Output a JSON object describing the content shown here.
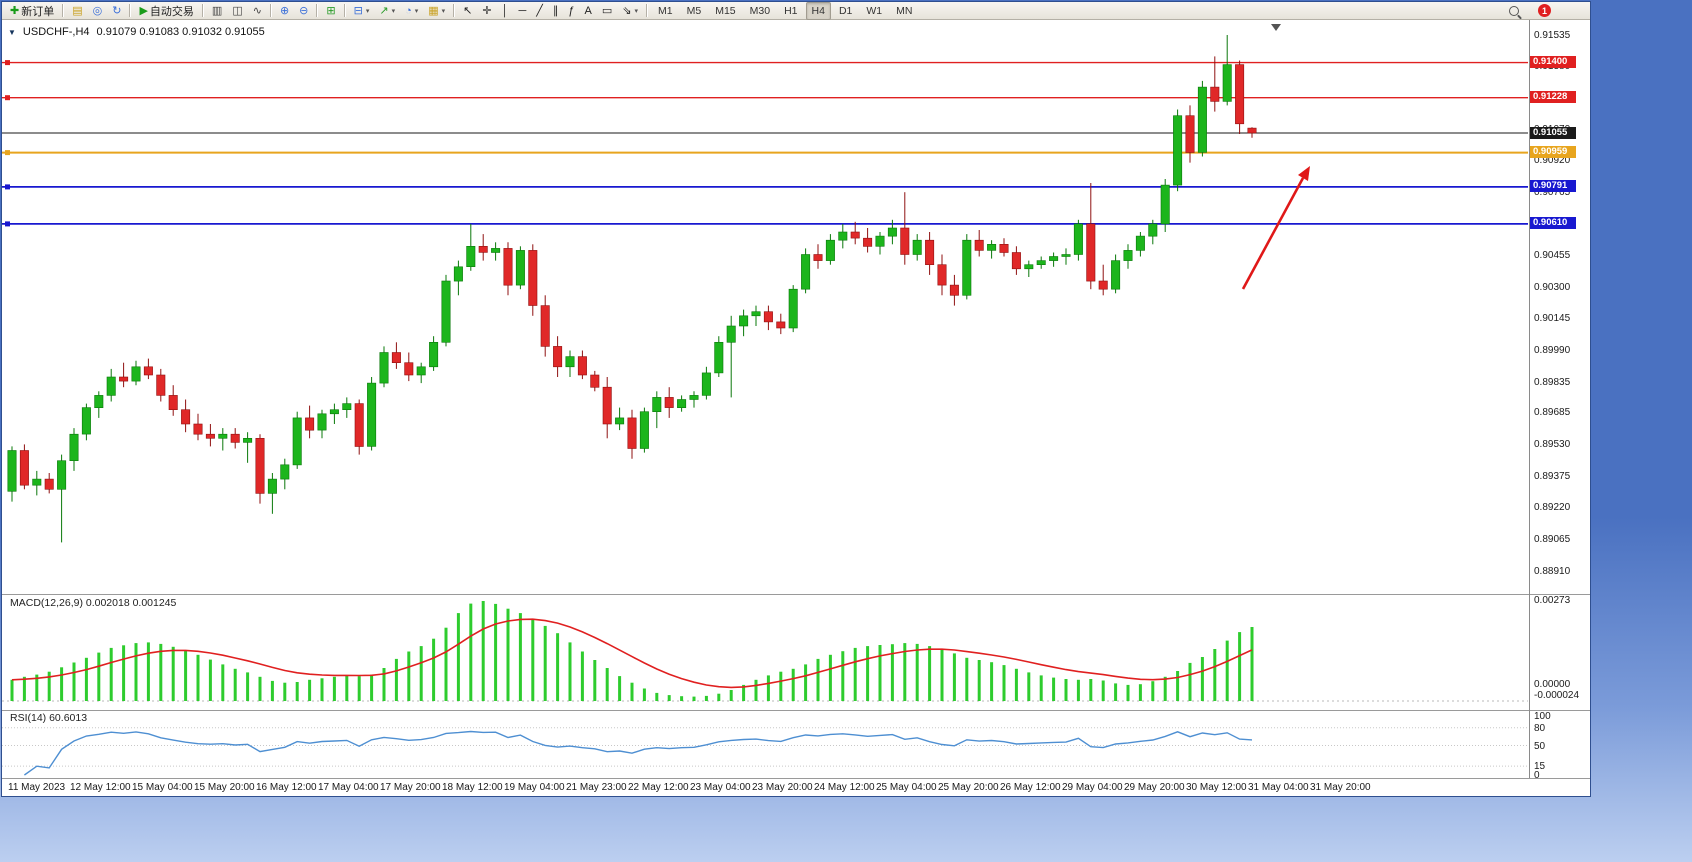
{
  "toolbar": {
    "notification_count": "1",
    "items": [
      {
        "name": "new-order-button",
        "label": "新订单",
        "glyph": "✚",
        "glyph_color": "#1a9c1a"
      },
      {
        "sep": true
      },
      {
        "name": "market-watch-button",
        "glyph": "▤",
        "glyph_color": "#c8a020"
      },
      {
        "name": "navigator-button",
        "glyph": "◎",
        "glyph_color": "#3a6fd8"
      },
      {
        "name": "refresh-button",
        "glyph": "↻",
        "glyph_color": "#3a6fd8"
      },
      {
        "sep": true
      },
      {
        "name": "autotrading-button",
        "label": "自动交易",
        "glyph": "▶",
        "glyph_color": "#1a9c1a"
      },
      {
        "sep": true
      },
      {
        "name": "bar-chart-button",
        "glyph": "▥",
        "glyph_color": "#444444"
      },
      {
        "name": "candlestick-chart-button",
        "glyph": "◫",
        "glyph_color": "#444444"
      },
      {
        "name": "line-chart-button",
        "glyph": "∿",
        "glyph_color": "#444444"
      },
      {
        "sep": true
      },
      {
        "name": "zoom-in-button",
        "glyph": "⊕",
        "glyph_color": "#3a6fd8"
      },
      {
        "name": "zoom-out-button",
        "glyph": "⊖",
        "glyph_color": "#3a6fd8"
      },
      {
        "sep": true
      },
      {
        "name": "tile-windows-button",
        "glyph": "⊞",
        "glyph_color": "#2a9c2a"
      },
      {
        "sep": true
      },
      {
        "name": "new-chart-button",
        "glyph": "⊟",
        "glyph_color": "#3a6fd8",
        "dropdown": true
      },
      {
        "name": "indicators-button",
        "glyph": "↗",
        "glyph_color": "#2a9c2a",
        "dropdown": true
      },
      {
        "name": "periods-button",
        "glyph": "◔",
        "glyph_color": "#3a6fd8",
        "dropdown": true
      },
      {
        "name": "templates-button",
        "glyph": "▦",
        "glyph_color": "#c8a020",
        "dropdown": true
      },
      {
        "sep": true
      },
      {
        "name": "cursor-button",
        "glyph": "↖",
        "glyph_color": "#222222"
      },
      {
        "name": "crosshair-button",
        "glyph": "✛",
        "glyph_color": "#222222"
      },
      {
        "name": "vertical-line-button",
        "glyph": "│",
        "glyph_color": "#222222"
      },
      {
        "name": "horizontal-line-button",
        "glyph": "─",
        "glyph_color": "#222222"
      },
      {
        "name": "trendline-button",
        "glyph": "╱",
        "glyph_color": "#222222"
      },
      {
        "name": "equidistant-channel-button",
        "glyph": "∥",
        "glyph_color": "#222222"
      },
      {
        "name": "fibonacci-button",
        "glyph": "ƒ",
        "glyph_color": "#222222"
      },
      {
        "name": "text-button",
        "glyph": "A",
        "glyph_color": "#222222"
      },
      {
        "name": "label-button",
        "glyph": "▭",
        "glyph_color": "#222222"
      },
      {
        "name": "arrows-button",
        "glyph": "⇘",
        "glyph_color": "#222222",
        "dropdown": true
      },
      {
        "sep": true
      }
    ],
    "timeframes": [
      {
        "label": "M1"
      },
      {
        "label": "M5"
      },
      {
        "label": "M15"
      },
      {
        "label": "M30"
      },
      {
        "label": "H1"
      },
      {
        "label": "H4",
        "active": true
      },
      {
        "label": "D1"
      },
      {
        "label": "W1"
      },
      {
        "label": "MN"
      }
    ]
  },
  "chart": {
    "title": "USDCHF-,H4",
    "ohlc": "0.91079 0.91083 0.91032 0.91055"
  },
  "macd": {
    "label": "MACD(12,26,9) 0.002018 0.001245",
    "axis_max": "0.00273",
    "axis_zero": "0.00000",
    "axis_min": "-0.000024",
    "histogram": [
      0.00058,
      0.00066,
      0.00072,
      0.0008,
      0.00092,
      0.00105,
      0.00118,
      0.00132,
      0.00145,
      0.00152,
      0.00158,
      0.0016,
      0.00156,
      0.00148,
      0.00138,
      0.00126,
      0.00113,
      0.001,
      0.00088,
      0.00078,
      0.00066,
      0.00055,
      0.0005,
      0.00052,
      0.00058,
      0.00062,
      0.00066,
      0.0007,
      0.00068,
      0.00072,
      0.0009,
      0.00115,
      0.00135,
      0.0015,
      0.0017,
      0.002,
      0.0024,
      0.00266,
      0.00273,
      0.00265,
      0.00252,
      0.0024,
      0.00225,
      0.00205,
      0.00185,
      0.0016,
      0.00135,
      0.00112,
      0.0009,
      0.00068,
      0.0005,
      0.00034,
      0.00022,
      0.00016,
      0.00013,
      0.00012,
      0.00014,
      0.0002,
      0.0003,
      0.00044,
      0.00058,
      0.0007,
      0.0008,
      0.00088,
      0.001,
      0.00115,
      0.00126,
      0.00136,
      0.00145,
      0.0015,
      0.00153,
      0.00155,
      0.00158,
      0.00156,
      0.0015,
      0.00142,
      0.0013,
      0.00118,
      0.00112,
      0.00106,
      0.00098,
      0.00088,
      0.00078,
      0.0007,
      0.00064,
      0.0006,
      0.00058,
      0.0006,
      0.00056,
      0.00048,
      0.00044,
      0.00046,
      0.00054,
      0.00066,
      0.00082,
      0.00104,
      0.0012,
      0.00142,
      0.00165,
      0.00188,
      0.00202
    ]
  },
  "rsi": {
    "label": "RSI(14) 60.6013",
    "current": 60.6013,
    "levels": [
      "100",
      "80",
      "50",
      "15",
      "0"
    ]
  },
  "chart_data": {
    "type": "candlestick",
    "symbol": "USDCHF",
    "timeframe": "H4",
    "current_ohlc": {
      "open": 0.91079,
      "high": 0.91083,
      "low": 0.91032,
      "close": 0.91055
    },
    "arrow_color": "#e01818",
    "y_ticks": [
      "0.91535",
      "0.91380",
      "0.91225",
      "0.91070",
      "0.90920",
      "0.90765",
      "0.90610",
      "0.90455",
      "0.90300",
      "0.90145",
      "0.89990",
      "0.89835",
      "0.89685",
      "0.89530",
      "0.89375",
      "0.89220",
      "0.89065",
      "0.88910"
    ],
    "price_lines": [
      {
        "price": 0.914,
        "label": "0.91400",
        "color": "#e02020",
        "width": 1.4,
        "handle": true
      },
      {
        "price": 0.91228,
        "label": "0.91228",
        "color": "#e02020",
        "width": 1.4,
        "handle": true
      },
      {
        "price": 0.91055,
        "label": "0.91055",
        "color": "#1a1a1a",
        "width": 1,
        "handle": false,
        "current": true
      },
      {
        "price": 0.90959,
        "label": "0.90959",
        "color": "#e8a51e",
        "width": 2,
        "handle": true
      },
      {
        "price": 0.90791,
        "label": "0.90791",
        "color": "#1818d0",
        "width": 1.8,
        "handle": true
      },
      {
        "price": 0.9061,
        "label": "0.90610",
        "color": "#1818d0",
        "width": 1.8,
        "handle": true
      }
    ],
    "x_labels": [
      "11 May 2023",
      "12 May 12:00",
      "15 May 04:00",
      "15 May 20:00",
      "16 May 12:00",
      "17 May 04:00",
      "17 May 20:00",
      "18 May 12:00",
      "19 May 04:00",
      "21 May 23:00",
      "22 May 12:00",
      "23 May 04:00",
      "23 May 20:00",
      "24 May 12:00",
      "25 May 04:00",
      "25 May 20:00",
      "26 May 12:00",
      "29 May 04:00",
      "29 May 20:00",
      "30 May 12:00",
      "31 May 04:00",
      "31 May 20:00"
    ],
    "candles": [
      [
        0.893,
        0.8952,
        0.8925,
        0.895
      ],
      [
        0.895,
        0.8953,
        0.8931,
        0.8933
      ],
      [
        0.8933,
        0.894,
        0.8928,
        0.8936
      ],
      [
        0.8936,
        0.8939,
        0.8929,
        0.8931
      ],
      [
        0.8931,
        0.8948,
        0.8905,
        0.8945
      ],
      [
        0.8945,
        0.8961,
        0.894,
        0.8958
      ],
      [
        0.8958,
        0.8973,
        0.8955,
        0.8971
      ],
      [
        0.8971,
        0.8979,
        0.8966,
        0.8977
      ],
      [
        0.8977,
        0.899,
        0.8974,
        0.8986
      ],
      [
        0.8986,
        0.8993,
        0.8981,
        0.8984
      ],
      [
        0.8984,
        0.8994,
        0.8982,
        0.8991
      ],
      [
        0.8991,
        0.8995,
        0.8985,
        0.8987
      ],
      [
        0.8987,
        0.899,
        0.8974,
        0.8977
      ],
      [
        0.8977,
        0.8982,
        0.8967,
        0.897
      ],
      [
        0.897,
        0.8975,
        0.8959,
        0.8963
      ],
      [
        0.8963,
        0.8968,
        0.8955,
        0.8958
      ],
      [
        0.8958,
        0.8963,
        0.8952,
        0.8956
      ],
      [
        0.8956,
        0.8961,
        0.895,
        0.8958
      ],
      [
        0.8958,
        0.8961,
        0.8951,
        0.8954
      ],
      [
        0.8954,
        0.8959,
        0.8944,
        0.8956
      ],
      [
        0.8956,
        0.8958,
        0.8924,
        0.8929
      ],
      [
        0.8929,
        0.8939,
        0.8919,
        0.8936
      ],
      [
        0.8936,
        0.8946,
        0.8931,
        0.8943
      ],
      [
        0.8943,
        0.8969,
        0.8941,
        0.8966
      ],
      [
        0.8966,
        0.8972,
        0.8956,
        0.896
      ],
      [
        0.896,
        0.897,
        0.8956,
        0.8968
      ],
      [
        0.8968,
        0.8973,
        0.8963,
        0.897
      ],
      [
        0.897,
        0.8976,
        0.8966,
        0.8973
      ],
      [
        0.8973,
        0.8975,
        0.8948,
        0.8952
      ],
      [
        0.8952,
        0.8986,
        0.895,
        0.8983
      ],
      [
        0.8983,
        0.9001,
        0.8981,
        0.8998
      ],
      [
        0.8998,
        0.9003,
        0.899,
        0.8993
      ],
      [
        0.8993,
        0.8998,
        0.8984,
        0.8987
      ],
      [
        0.8987,
        0.8993,
        0.8983,
        0.8991
      ],
      [
        0.8991,
        0.9006,
        0.8989,
        0.9003
      ],
      [
        0.9003,
        0.9036,
        0.9001,
        0.9033
      ],
      [
        0.9033,
        0.9043,
        0.9026,
        0.904
      ],
      [
        0.904,
        0.9061,
        0.9038,
        0.905
      ],
      [
        0.905,
        0.9056,
        0.9043,
        0.9047
      ],
      [
        0.9047,
        0.9052,
        0.9043,
        0.9049
      ],
      [
        0.9049,
        0.9052,
        0.9026,
        0.9031
      ],
      [
        0.9031,
        0.905,
        0.9029,
        0.9048
      ],
      [
        0.9048,
        0.9051,
        0.9016,
        0.9021
      ],
      [
        0.9021,
        0.9026,
        0.8996,
        0.9001
      ],
      [
        0.9001,
        0.9006,
        0.8986,
        0.8991
      ],
      [
        0.8991,
        0.8999,
        0.8986,
        0.8996
      ],
      [
        0.8996,
        0.8999,
        0.8985,
        0.8987
      ],
      [
        0.8987,
        0.8989,
        0.8979,
        0.8981
      ],
      [
        0.8981,
        0.8986,
        0.8956,
        0.8963
      ],
      [
        0.8963,
        0.8971,
        0.896,
        0.8966
      ],
      [
        0.8966,
        0.897,
        0.8946,
        0.8951
      ],
      [
        0.8951,
        0.8971,
        0.8949,
        0.8969
      ],
      [
        0.8969,
        0.8979,
        0.8961,
        0.8976
      ],
      [
        0.8976,
        0.8981,
        0.8966,
        0.8971
      ],
      [
        0.8971,
        0.8977,
        0.8969,
        0.8975
      ],
      [
        0.8975,
        0.8979,
        0.8971,
        0.8977
      ],
      [
        0.8977,
        0.8991,
        0.8975,
        0.8988
      ],
      [
        0.8988,
        0.9006,
        0.8986,
        0.9003
      ],
      [
        0.9003,
        0.9016,
        0.8976,
        0.9011
      ],
      [
        0.9011,
        0.9019,
        0.9006,
        0.9016
      ],
      [
        0.9016,
        0.9021,
        0.9011,
        0.9018
      ],
      [
        0.9018,
        0.9021,
        0.9009,
        0.9013
      ],
      [
        0.9013,
        0.9017,
        0.9007,
        0.901
      ],
      [
        0.901,
        0.9031,
        0.9008,
        0.9029
      ],
      [
        0.9029,
        0.9049,
        0.9027,
        0.9046
      ],
      [
        0.9046,
        0.9051,
        0.9039,
        0.9043
      ],
      [
        0.9043,
        0.9056,
        0.9041,
        0.9053
      ],
      [
        0.9053,
        0.9061,
        0.9049,
        0.9057
      ],
      [
        0.9057,
        0.9062,
        0.9051,
        0.9054
      ],
      [
        0.9054,
        0.9059,
        0.9047,
        0.905
      ],
      [
        0.905,
        0.9057,
        0.9046,
        0.9055
      ],
      [
        0.9055,
        0.9063,
        0.9051,
        0.9059
      ],
      [
        0.9059,
        0.90765,
        0.9041,
        0.9046
      ],
      [
        0.9046,
        0.9056,
        0.9043,
        0.9053
      ],
      [
        0.9053,
        0.9057,
        0.9036,
        0.9041
      ],
      [
        0.9041,
        0.9046,
        0.9026,
        0.9031
      ],
      [
        0.9031,
        0.9036,
        0.9021,
        0.9026
      ],
      [
        0.9026,
        0.9056,
        0.9024,
        0.9053
      ],
      [
        0.9053,
        0.9058,
        0.9045,
        0.9048
      ],
      [
        0.9048,
        0.9053,
        0.9044,
        0.9051
      ],
      [
        0.9051,
        0.9054,
        0.9045,
        0.9047
      ],
      [
        0.9047,
        0.905,
        0.9036,
        0.9039
      ],
      [
        0.9039,
        0.9043,
        0.9035,
        0.9041
      ],
      [
        0.9041,
        0.9045,
        0.9039,
        0.9043
      ],
      [
        0.9043,
        0.9047,
        0.904,
        0.9045
      ],
      [
        0.9045,
        0.9049,
        0.9041,
        0.9046
      ],
      [
        0.9046,
        0.9063,
        0.9043,
        0.9061
      ],
      [
        0.9061,
        0.9081,
        0.9029,
        0.9033
      ],
      [
        0.9033,
        0.9041,
        0.9026,
        0.9029
      ],
      [
        0.9029,
        0.9046,
        0.9027,
        0.9043
      ],
      [
        0.9043,
        0.9051,
        0.9039,
        0.9048
      ],
      [
        0.9048,
        0.9057,
        0.9045,
        0.9055
      ],
      [
        0.9055,
        0.9063,
        0.9051,
        0.9061
      ],
      [
        0.9061,
        0.9083,
        0.9057,
        0.908
      ],
      [
        0.908,
        0.9117,
        0.9077,
        0.9114
      ],
      [
        0.9114,
        0.9119,
        0.9091,
        0.9096
      ],
      [
        0.9096,
        0.9131,
        0.9094,
        0.9128
      ],
      [
        0.9128,
        0.9143,
        0.9116,
        0.9121
      ],
      [
        0.9121,
        0.91535,
        0.9119,
        0.9139
      ],
      [
        0.9139,
        0.9141,
        0.9105,
        0.911
      ],
      [
        0.91079,
        0.91083,
        0.91032,
        0.91055
      ]
    ]
  }
}
